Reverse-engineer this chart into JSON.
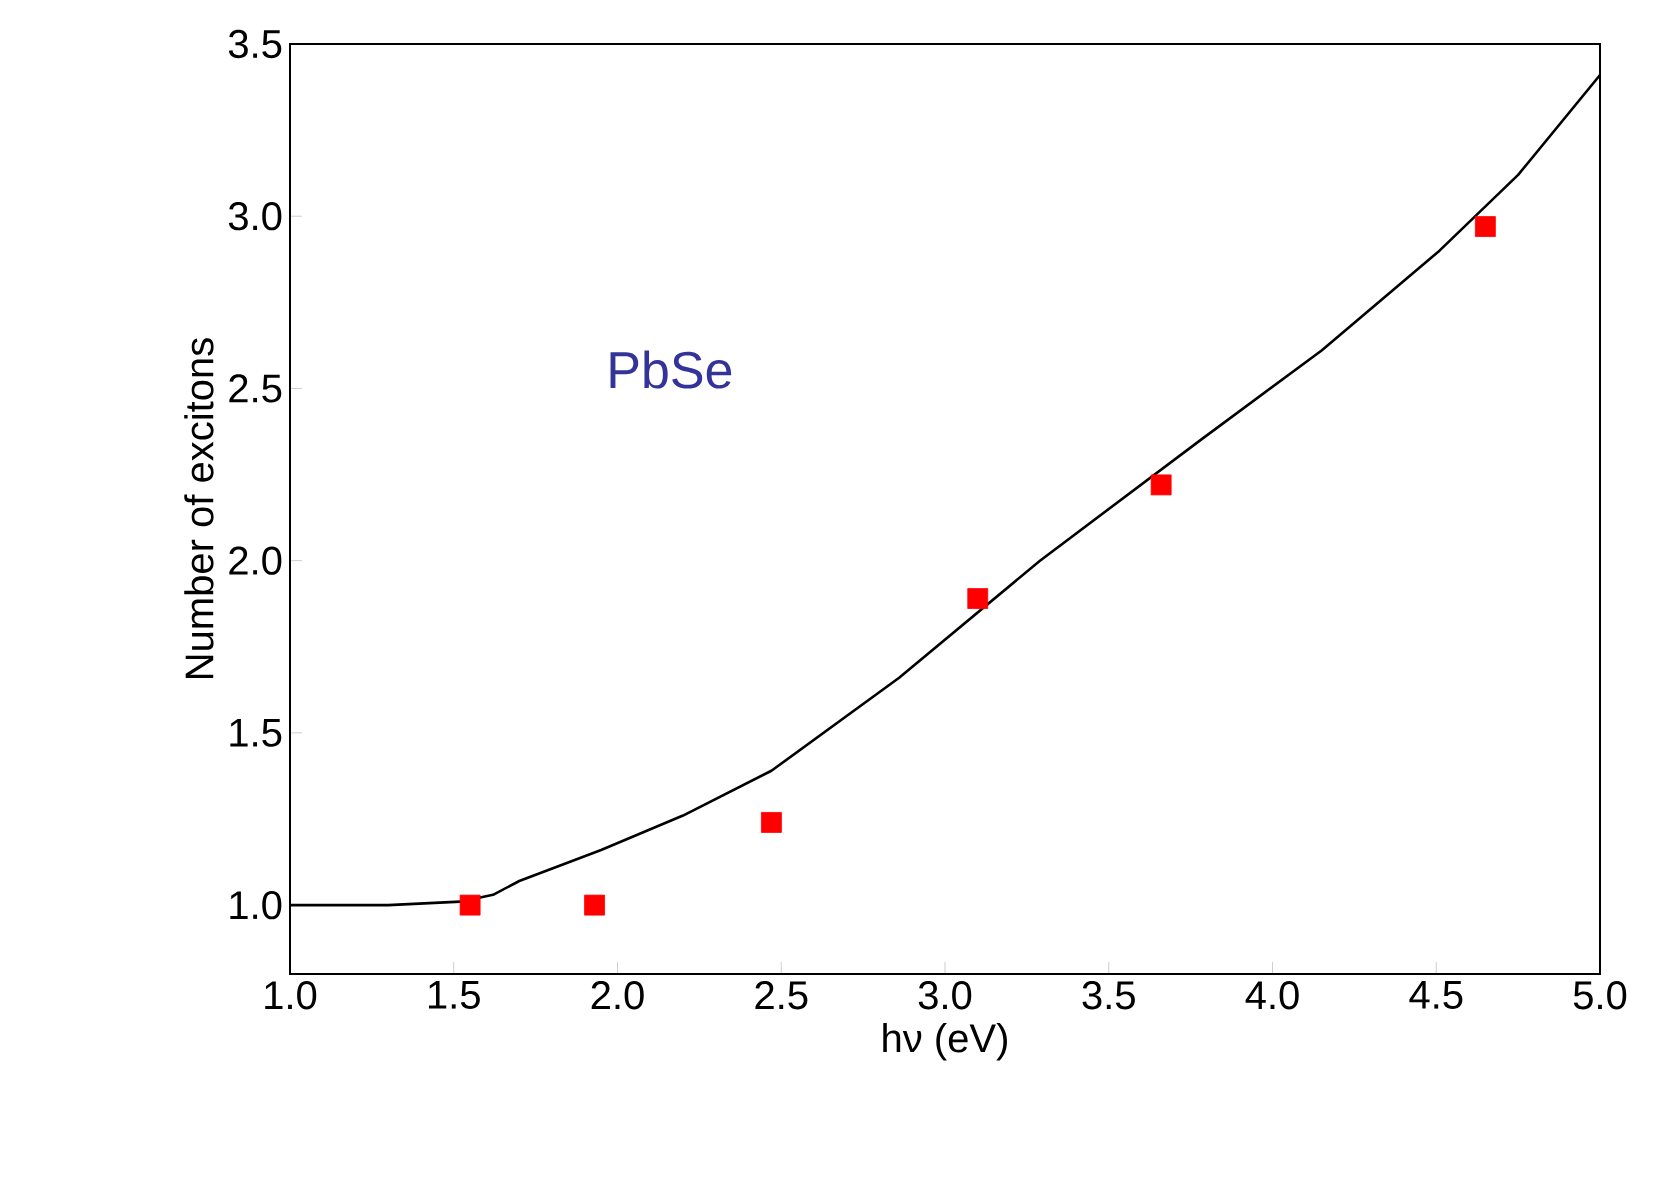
{
  "chart_data": {
    "type": "line",
    "xlabel": "hν (eV)",
    "ylabel": "Number of excitons",
    "annotations": [
      "PbSe"
    ],
    "xlim": [
      1.0,
      5.0
    ],
    "xticks": [
      {
        "value": 1.0,
        "label": "1.0"
      },
      {
        "value": 1.5,
        "label": "1.5"
      },
      {
        "value": 2.0,
        "label": "2.0"
      },
      {
        "value": 2.5,
        "label": "2.5"
      },
      {
        "value": 3.0,
        "label": "3.0"
      },
      {
        "value": 3.5,
        "label": "3.5"
      },
      {
        "value": 4.0,
        "label": "4.0"
      },
      {
        "value": 4.5,
        "label": "4.5"
      },
      {
        "value": 5.0,
        "label": "5.0"
      }
    ],
    "ylim": [
      0.8,
      3.5
    ],
    "yticks": [
      {
        "value": 1.0,
        "label": "1.0"
      },
      {
        "value": 1.5,
        "label": "1.5"
      },
      {
        "value": 2.0,
        "label": "2.0"
      },
      {
        "value": 2.5,
        "label": "2.5"
      },
      {
        "value": 3.0,
        "label": "3.0"
      },
      {
        "value": 3.5,
        "label": "3.5"
      }
    ],
    "grid": false,
    "legend": false,
    "series": [
      {
        "color": "#000000",
        "marker": "none",
        "line_style": "solid",
        "x": [
          1.0,
          1.3,
          1.52,
          1.62,
          1.7,
          1.95,
          2.2,
          2.47,
          2.86,
          3.29,
          3.78,
          4.15,
          4.51,
          4.75,
          5.0
        ],
        "values": [
          1.0,
          1.0,
          1.01,
          1.03,
          1.07,
          1.16,
          1.26,
          1.39,
          1.66,
          2.0,
          2.35,
          2.61,
          2.9,
          3.12,
          3.41
        ]
      },
      {
        "type": "scatter",
        "color": "#ff0000",
        "marker": "square",
        "x": [
          1.55,
          1.93,
          2.47,
          3.1,
          3.66,
          4.65
        ],
        "values": [
          1.0,
          1.0,
          1.24,
          1.89,
          2.22,
          2.97
        ]
      }
    ]
  }
}
